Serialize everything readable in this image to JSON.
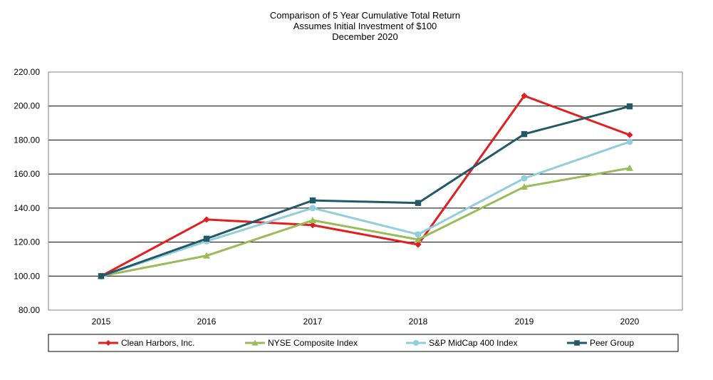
{
  "chart_data": {
    "type": "line",
    "title": "Comparison of 5 Year Cumulative Total Return",
    "subtitle": "Assumes Initial Investment of $100",
    "subtitle2": "December 2020",
    "categories": [
      "2015",
      "2016",
      "2017",
      "2018",
      "2019",
      "2020"
    ],
    "y_ticks": [
      "80.00",
      "100.00",
      "120.00",
      "140.00",
      "160.00",
      "180.00",
      "200.00",
      "220.00"
    ],
    "ylim": [
      80,
      220
    ],
    "grid": true,
    "legend_position": "bottom",
    "series": [
      {
        "name": "Clean Harbors, Inc.",
        "color": "#e31e1e",
        "marker": "diamond",
        "values": [
          100.0,
          133.3,
          130.0,
          118.5,
          206.0,
          183.0
        ]
      },
      {
        "name": "NYSE Composite Index",
        "color": "#9bbb59",
        "marker": "triangle",
        "values": [
          100.0,
          112.0,
          132.8,
          121.5,
          152.5,
          163.5
        ]
      },
      {
        "name": "S&P MidCap 400 Index",
        "color": "#92cddc",
        "marker": "circle",
        "values": [
          100.0,
          120.5,
          140.0,
          124.5,
          157.5,
          179.0
        ]
      },
      {
        "name": "Peer Group",
        "color": "#215968",
        "marker": "square",
        "values": [
          100.0,
          122.0,
          144.5,
          143.0,
          183.5,
          199.8
        ]
      }
    ]
  }
}
